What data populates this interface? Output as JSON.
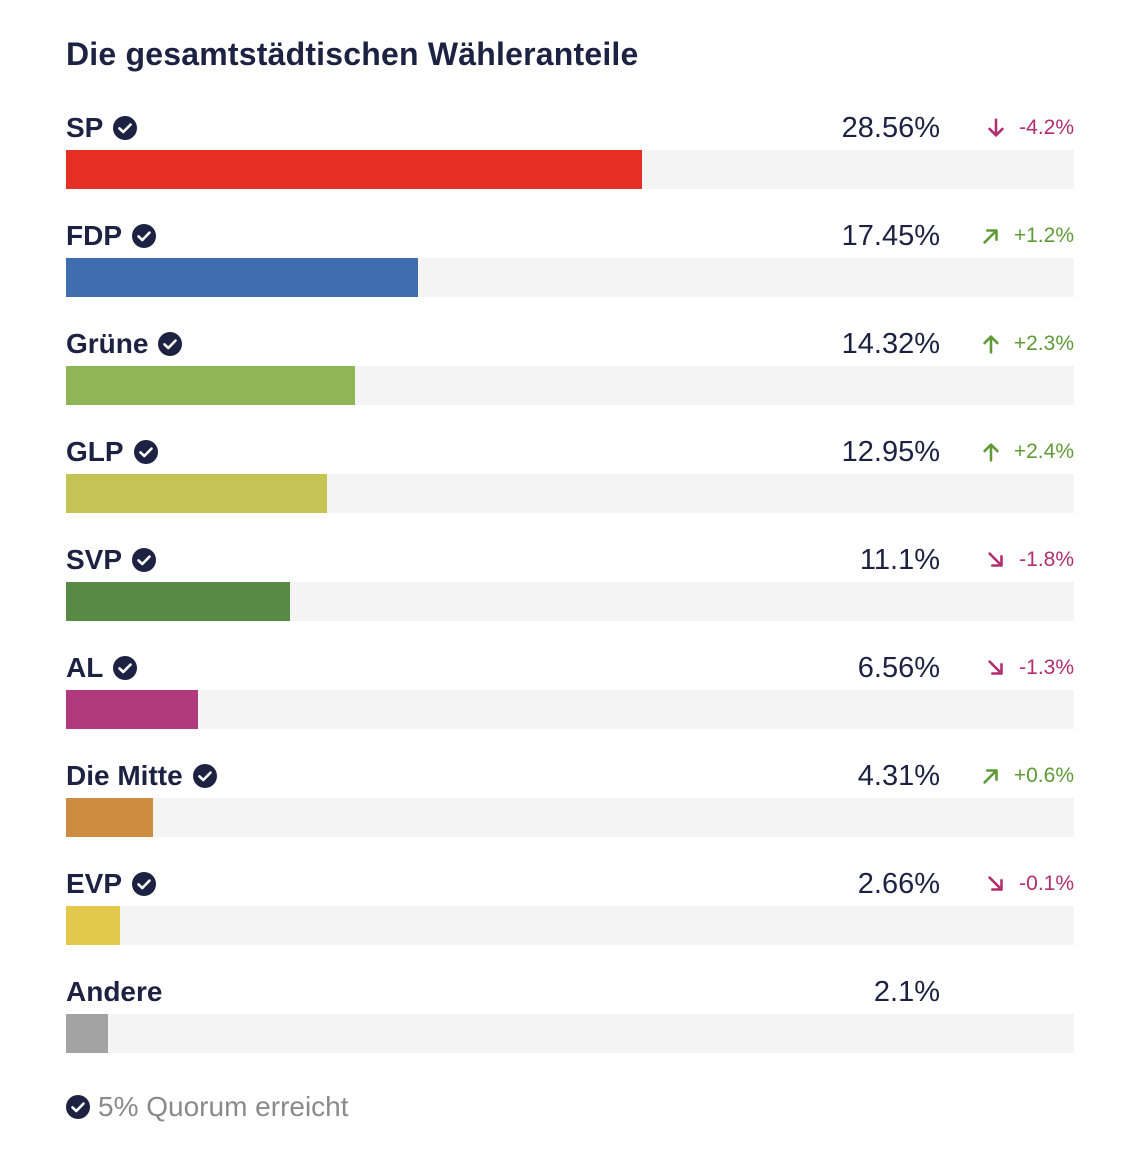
{
  "chart_data": {
    "type": "bar",
    "orientation": "horizontal",
    "title": "Die gesamtstädtischen Wähleranteile",
    "xlim": [
      0,
      50
    ],
    "categories": [
      "SP",
      "FDP",
      "Grüne",
      "GLP",
      "SVP",
      "AL",
      "Die Mitte",
      "EVP",
      "Andere"
    ],
    "values": [
      28.56,
      17.45,
      14.32,
      12.95,
      11.1,
      6.56,
      4.31,
      2.66,
      2.1
    ],
    "rows": [
      {
        "party": "SP",
        "value": 28.56,
        "value_label": "28.56%",
        "change": -4.2,
        "change_label": "-4.2%",
        "arrow": "down-arrow-icon",
        "quorum": true,
        "color": "#e63025"
      },
      {
        "party": "FDP",
        "value": 17.45,
        "value_label": "17.45%",
        "change": 1.2,
        "change_label": "+1.2%",
        "arrow": "up-right-arrow-icon",
        "quorum": true,
        "color": "#406dad"
      },
      {
        "party": "Grüne",
        "value": 14.32,
        "value_label": "14.32%",
        "change": 2.3,
        "change_label": "+2.3%",
        "arrow": "up-arrow-icon",
        "quorum": true,
        "color": "#8fb656"
      },
      {
        "party": "GLP",
        "value": 12.95,
        "value_label": "12.95%",
        "change": 2.4,
        "change_label": "+2.4%",
        "arrow": "up-arrow-icon",
        "quorum": true,
        "color": "#c4c454"
      },
      {
        "party": "SVP",
        "value": 11.1,
        "value_label": "11.1%",
        "change": -1.8,
        "change_label": "-1.8%",
        "arrow": "down-right-arrow-icon",
        "quorum": true,
        "color": "#578a44"
      },
      {
        "party": "AL",
        "value": 6.56,
        "value_label": "6.56%",
        "change": -1.3,
        "change_label": "-1.3%",
        "arrow": "down-right-arrow-icon",
        "quorum": true,
        "color": "#b13a7d"
      },
      {
        "party": "Die Mitte",
        "value": 4.31,
        "value_label": "4.31%",
        "change": 0.6,
        "change_label": "+0.6%",
        "arrow": "up-right-arrow-icon",
        "quorum": true,
        "color": "#cd8c42"
      },
      {
        "party": "EVP",
        "value": 2.66,
        "value_label": "2.66%",
        "change": -0.1,
        "change_label": "-0.1%",
        "arrow": "down-right-arrow-icon",
        "quorum": true,
        "color": "#e2c94b"
      },
      {
        "party": "Andere",
        "value": 2.1,
        "value_label": "2.1%",
        "change": null,
        "change_label": "",
        "arrow": "",
        "quorum": false,
        "color": "#a3a3a3"
      }
    ]
  },
  "colors": {
    "text": "#1d2142",
    "positive": "#5f9a37",
    "negative": "#b12e6f",
    "track": "#f4f4f4",
    "footnote": "#8a8a8a"
  },
  "footnote": {
    "text": "5% Quorum erreicht",
    "icon": "check-circle-icon"
  }
}
